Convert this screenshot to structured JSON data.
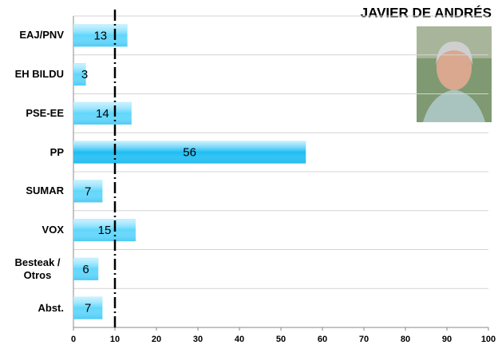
{
  "chart_data": {
    "type": "bar",
    "orientation": "horizontal",
    "title": "JAVIER DE ANDRÉS",
    "categories": [
      "EAJ/PNV",
      "EH BILDU",
      "PSE-EE",
      "PP",
      "SUMAR",
      "VOX",
      "Besteak / Otros",
      "Abst."
    ],
    "values": [
      13,
      3,
      14,
      56,
      7,
      15,
      6,
      7
    ],
    "colors": [
      "#5fd6fc",
      "#5fd6fc",
      "#5fd6fc",
      "#1cbdf3",
      "#5fd6fc",
      "#5fd6fc",
      "#5fd6fc",
      "#5fd6fc"
    ],
    "xlim": [
      0,
      100
    ],
    "xticks": [
      0,
      10,
      20,
      30,
      40,
      50,
      60,
      70,
      80,
      90,
      100
    ],
    "reference_line": 10
  }
}
